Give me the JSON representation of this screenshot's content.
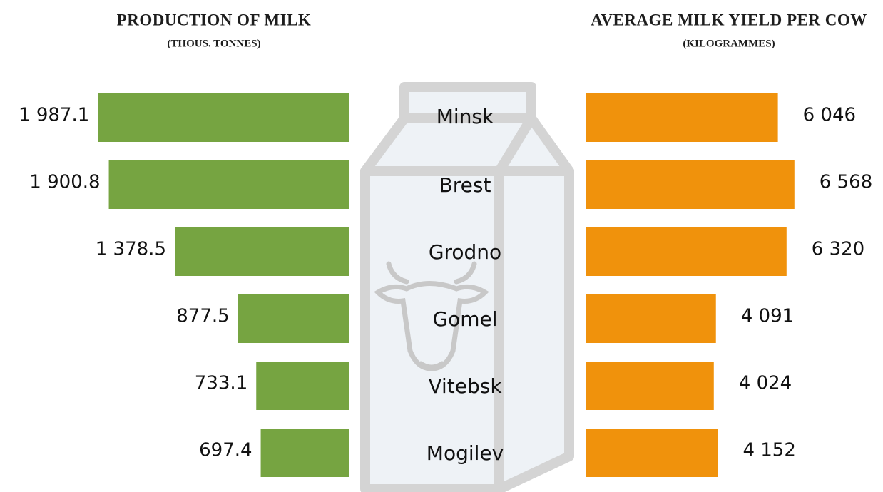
{
  "chart_data": [
    {
      "type": "bar",
      "orientation": "horizontal",
      "direction": "leftward",
      "title": "PRODUCTION OF MILK",
      "subtitle": "(THOUS. TONNES)",
      "categories": [
        "Minsk",
        "Brest",
        "Grodno",
        "Gomel",
        "Vitebsk",
        "Mogilev"
      ],
      "values": [
        1987.1,
        1900.8,
        1378.5,
        877.5,
        733.1,
        697.4
      ],
      "value_labels": [
        "1 987.1",
        "1 900.8",
        "1 378.5",
        "877.5",
        "733.1",
        "697.4"
      ],
      "color": "#76a441",
      "xlim": [
        0,
        2000
      ]
    },
    {
      "type": "bar",
      "orientation": "horizontal",
      "direction": "rightward",
      "title": "AVERAGE MILK YIELD PER COW",
      "subtitle": "(KILOGRAMMES)",
      "values": [
        6046,
        6568,
        6320,
        4091,
        4024,
        4152
      ],
      "value_labels": [
        "6 046",
        "6 568",
        "6 320",
        "4 091",
        "4 024",
        "4 152"
      ],
      "color": "#f0920c",
      "xlim": [
        0,
        7000
      ]
    }
  ]
}
